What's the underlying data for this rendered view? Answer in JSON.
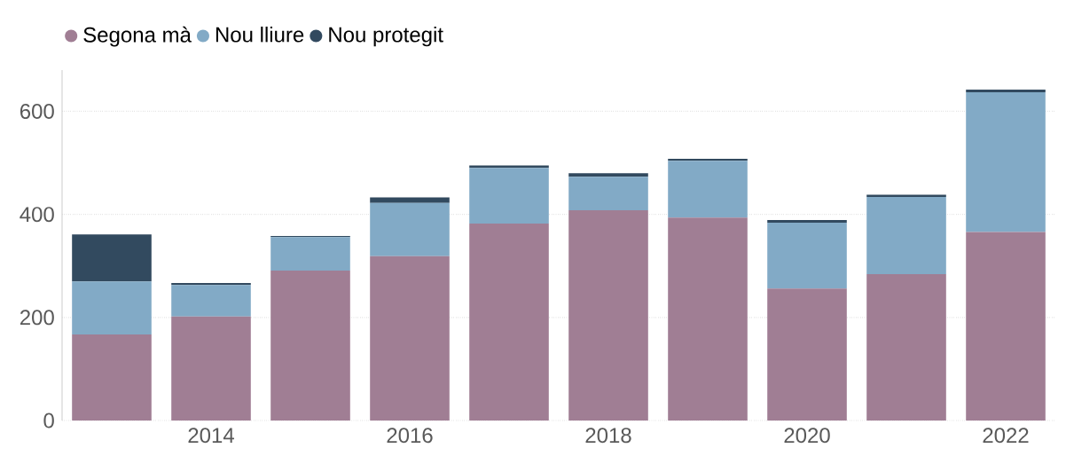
{
  "chart_data": {
    "type": "bar",
    "stacked": true,
    "x": [
      2013,
      2014,
      2015,
      2016,
      2017,
      2018,
      2019,
      2020,
      2021,
      2022
    ],
    "xlim": [
      2012.5,
      2022.5
    ],
    "xticks": [
      2014,
      2016,
      2018,
      2020,
      2022
    ],
    "ylim": [
      0,
      680
    ],
    "yticks": [
      0,
      200,
      400,
      600
    ],
    "grid": "y",
    "legend": "top left",
    "series": [
      {
        "name": "Segona mà",
        "color": "#a07e94",
        "values": [
          167,
          202,
          291,
          319,
          382,
          408,
          394,
          256,
          284,
          366
        ]
      },
      {
        "name": "Nou lliure",
        "color": "#82aac6",
        "values": [
          103,
          61,
          65,
          103,
          108,
          65,
          110,
          128,
          150,
          271
        ]
      },
      {
        "name": "Nou protegit",
        "color": "#324a5f",
        "values": [
          91,
          4,
          2,
          11,
          5,
          7,
          4,
          5,
          4,
          5
        ]
      }
    ]
  }
}
